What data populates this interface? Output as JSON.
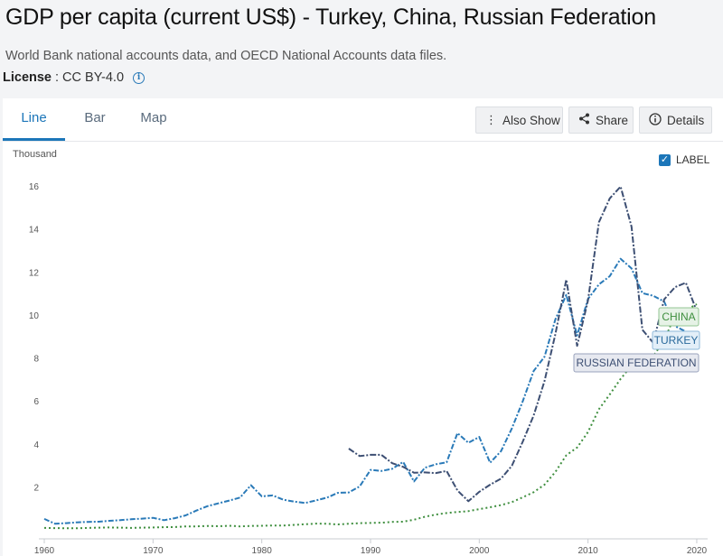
{
  "header": {
    "title": "GDP per capita (current US$) - Turkey, China, Russian Federation",
    "subtitle": "World Bank national accounts data, and OECD National Accounts data files.",
    "license_label": "License",
    "license_value": ": CC BY-4.0",
    "info_icon": "info-icon"
  },
  "tabs": [
    {
      "label": "Line",
      "active": true
    },
    {
      "label": "Bar",
      "active": false
    },
    {
      "label": "Map",
      "active": false
    }
  ],
  "toolbar": {
    "also_show": "Also Show",
    "share": "Share",
    "details": "Details"
  },
  "chart": {
    "unit_label": "Thousand",
    "label_toggle": "LABEL",
    "label_checked": true
  },
  "colors": {
    "turkey": "#2a7ab8",
    "china": "#3f8f3f",
    "russia": "#3d4f73",
    "accent": "#1c76b9"
  },
  "chart_data": {
    "type": "line",
    "xlim": [
      1960,
      2021
    ],
    "ylim": [
      0,
      16
    ],
    "x_ticks": [
      1960,
      1970,
      1980,
      1990,
      2000,
      2010,
      2020
    ],
    "y_ticks": [
      2,
      4,
      6,
      8,
      10,
      12,
      14,
      16
    ],
    "ylabel": "Thousand",
    "series": [
      {
        "name": "TURKEY",
        "color_key": "turkey",
        "x": [
          1960,
          1961,
          1962,
          1963,
          1964,
          1965,
          1966,
          1967,
          1968,
          1969,
          1970,
          1971,
          1972,
          1973,
          1974,
          1975,
          1976,
          1977,
          1978,
          1979,
          1980,
          1981,
          1982,
          1983,
          1984,
          1985,
          1986,
          1987,
          1988,
          1989,
          1990,
          1991,
          1992,
          1993,
          1994,
          1995,
          1996,
          1997,
          1998,
          1999,
          2000,
          2001,
          2002,
          2003,
          2004,
          2005,
          2006,
          2007,
          2008,
          2009,
          2010,
          2011,
          2012,
          2013,
          2014,
          2015,
          2016,
          2017,
          2018,
          2019,
          2020
        ],
        "values": [
          0.51,
          0.28,
          0.31,
          0.35,
          0.37,
          0.38,
          0.42,
          0.45,
          0.49,
          0.52,
          0.56,
          0.45,
          0.54,
          0.67,
          0.9,
          1.1,
          1.23,
          1.36,
          1.5,
          2.08,
          1.56,
          1.6,
          1.4,
          1.31,
          1.25,
          1.37,
          1.5,
          1.72,
          1.74,
          2.02,
          2.79,
          2.74,
          2.84,
          3.16,
          2.25,
          2.89,
          3.05,
          3.14,
          4.5,
          4.05,
          4.32,
          3.12,
          3.66,
          4.72,
          5.98,
          7.39,
          8.05,
          9.79,
          10.93,
          9.04,
          10.74,
          11.42,
          11.8,
          12.61,
          12.16,
          11.01,
          10.89,
          10.62,
          9.48,
          9.22,
          8.61
        ]
      },
      {
        "name": "CHINA",
        "color_key": "china",
        "x": [
          1960,
          1961,
          1962,
          1963,
          1964,
          1965,
          1966,
          1967,
          1968,
          1969,
          1970,
          1971,
          1972,
          1973,
          1974,
          1975,
          1976,
          1977,
          1978,
          1979,
          1980,
          1981,
          1982,
          1983,
          1984,
          1985,
          1986,
          1987,
          1988,
          1989,
          1990,
          1991,
          1992,
          1993,
          1994,
          1995,
          1996,
          1997,
          1998,
          1999,
          2000,
          2001,
          2002,
          2003,
          2004,
          2005,
          2006,
          2007,
          2008,
          2009,
          2010,
          2011,
          2012,
          2013,
          2014,
          2015,
          2016,
          2017,
          2018,
          2019,
          2020
        ],
        "values": [
          0.09,
          0.08,
          0.07,
          0.07,
          0.09,
          0.1,
          0.11,
          0.1,
          0.09,
          0.1,
          0.11,
          0.12,
          0.13,
          0.16,
          0.16,
          0.18,
          0.17,
          0.19,
          0.16,
          0.18,
          0.19,
          0.2,
          0.2,
          0.23,
          0.26,
          0.29,
          0.28,
          0.25,
          0.28,
          0.31,
          0.32,
          0.33,
          0.37,
          0.38,
          0.47,
          0.61,
          0.71,
          0.78,
          0.83,
          0.87,
          0.96,
          1.05,
          1.15,
          1.29,
          1.51,
          1.75,
          2.1,
          2.69,
          3.47,
          3.83,
          4.55,
          5.61,
          6.3,
          7.02,
          7.64,
          8.03,
          8.08,
          8.82,
          9.98,
          10.22,
          10.5
        ]
      },
      {
        "name": "RUSSIAN FEDERATION",
        "color_key": "russia",
        "x": [
          1988,
          1989,
          1990,
          1991,
          1992,
          1993,
          1994,
          1995,
          1996,
          1997,
          1998,
          1999,
          2000,
          2001,
          2002,
          2003,
          2004,
          2005,
          2006,
          2007,
          2008,
          2009,
          2010,
          2011,
          2012,
          2013,
          2014,
          2015,
          2016,
          2017,
          2018,
          2019,
          2020
        ],
        "values": [
          3.78,
          3.43,
          3.49,
          3.49,
          3.1,
          2.93,
          2.66,
          2.67,
          2.64,
          2.74,
          1.83,
          1.33,
          1.77,
          2.1,
          2.38,
          2.98,
          4.1,
          5.32,
          6.92,
          9.1,
          11.64,
          8.56,
          10.67,
          14.31,
          15.42,
          15.97,
          14.1,
          9.31,
          8.7,
          10.72,
          11.29,
          11.5,
          10.17
        ]
      }
    ],
    "series_labels": [
      "CHINA",
      "TURKEY",
      "RUSSIAN FEDERATION"
    ]
  }
}
